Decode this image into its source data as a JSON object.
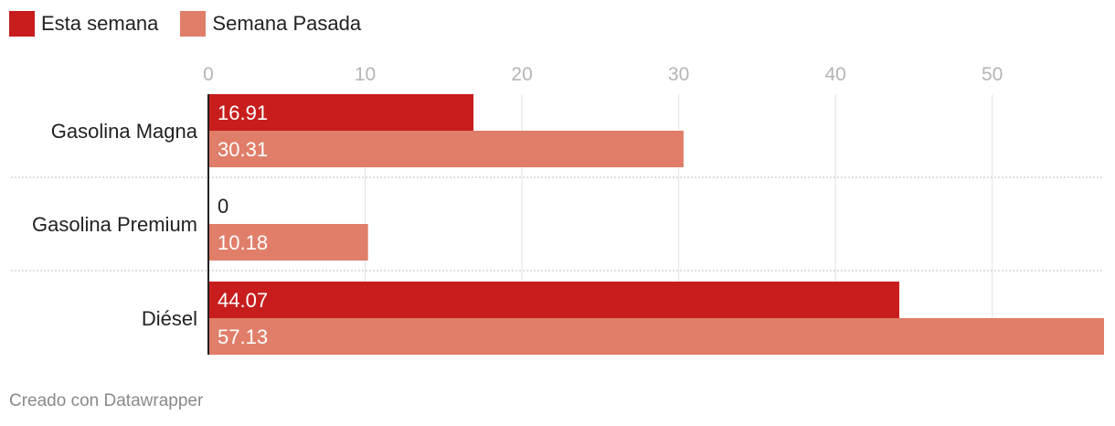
{
  "legend": {
    "items": [
      {
        "label": "Esta semana",
        "color": "#c71e1d"
      },
      {
        "label": "Semana Pasada",
        "color": "#e07e69"
      }
    ]
  },
  "footer": {
    "text": "Creado con Datawrapper"
  },
  "chart_data": {
    "type": "bar",
    "orientation": "horizontal",
    "categories": [
      "Gasolina Magna",
      "Gasolina Premium",
      "Diésel"
    ],
    "series": [
      {
        "name": "Esta semana",
        "values": [
          16.91,
          0,
          44.07
        ],
        "color": "#c71e1d"
      },
      {
        "name": "Semana Pasada",
        "values": [
          30.31,
          10.18,
          57.13
        ],
        "color": "#e07e69"
      }
    ],
    "xlim": [
      0,
      57.13
    ],
    "xticks": [
      0,
      10,
      20,
      30,
      40,
      50
    ],
    "grid": true,
    "legend_position": "top-left",
    "title": "",
    "xlabel": "",
    "ylabel": ""
  }
}
